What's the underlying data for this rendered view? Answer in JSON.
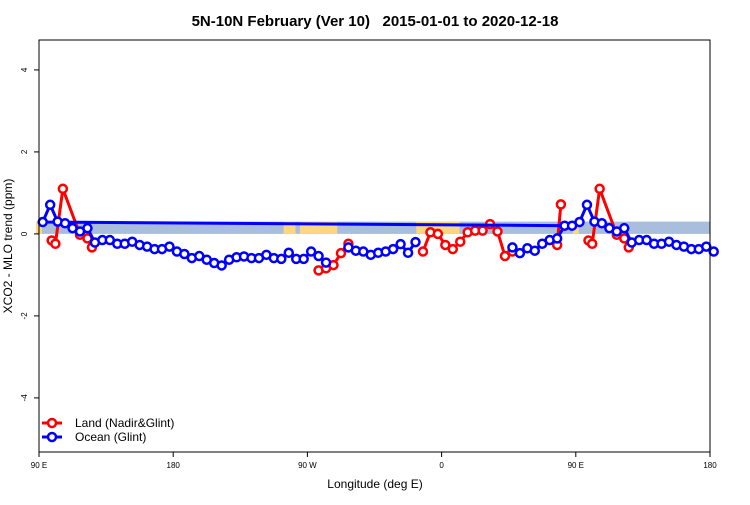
{
  "chart_data": {
    "type": "line",
    "title": "5N-10N February (Ver 10)   2015-01-01 to 2020-12-18",
    "xlabel": "Longitude (deg E)",
    "ylabel": "XCO2 - MLO trend (ppm)",
    "xlim_deg_east": [
      90,
      540
    ],
    "ylim": [
      -5.32,
      4.73
    ],
    "x_ticks": [
      {
        "lon": 90,
        "label": "90 E"
      },
      {
        "lon": 180,
        "label": "180"
      },
      {
        "lon": 270,
        "label": "90 W"
      },
      {
        "lon": 360,
        "label": "0"
      },
      {
        "lon": 450,
        "label": "90 E"
      },
      {
        "lon": 540,
        "label": "180"
      }
    ],
    "y_ticks": [
      4,
      2,
      0,
      -2,
      -4
    ],
    "grid": false,
    "legend_position": "bottom-left",
    "colors": {
      "land": "#ff0000",
      "ocean": "#0000ff",
      "ocean_band": "#a8bedc",
      "land_band": "#fcd77f"
    },
    "series": [
      {
        "name": "Land (Nadir&Glint)",
        "color": "#ff0000",
        "segments": [
          [
            [
              98.5,
              -0.16
            ],
            [
              101,
              -0.24
            ],
            [
              106,
              1.1
            ],
            [
              117.5,
              -0.02
            ],
            [
              122.5,
              -0.11
            ],
            [
              125.5,
              -0.33
            ]
          ],
          [
            [
              277.5,
              -0.89
            ],
            [
              282.5,
              -0.84
            ],
            [
              287.5,
              -0.76
            ],
            [
              292.5,
              -0.47
            ],
            [
              297.5,
              -0.24
            ]
          ],
          [
            [
              347.5,
              -0.43
            ],
            [
              352.5,
              0.04
            ],
            [
              357.5,
              0.0
            ],
            [
              2.5,
              -0.27
            ],
            [
              7.5,
              -0.37
            ],
            [
              12.5,
              -0.19
            ],
            [
              17.5,
              0.04
            ],
            [
              22.5,
              0.08
            ],
            [
              27.5,
              0.08
            ],
            [
              32.5,
              0.24
            ],
            [
              37.5,
              0.06
            ],
            [
              42.5,
              -0.54
            ],
            [
              47.5,
              -0.43
            ]
          ],
          [
            [
              77.5,
              -0.27
            ],
            [
              80,
              0.72
            ]
          ]
        ]
      },
      {
        "name": "Ocean (Glint)",
        "color": "#0000ff",
        "segments": [
          [
            [
              47.5,
              -0.33
            ],
            [
              52.5,
              -0.47
            ],
            [
              57.5,
              -0.35
            ],
            [
              62.5,
              -0.41
            ],
            [
              67.5,
              -0.24
            ],
            [
              72.5,
              -0.15
            ],
            [
              77.5,
              -0.11
            ],
            [
              82.5,
              0.2
            ],
            [
              87.5,
              0.2
            ],
            [
              92.5,
              0.29
            ],
            [
              97.5,
              0.71
            ],
            [
              102.5,
              0.3
            ],
            [
              107.5,
              0.26
            ],
            [
              112.5,
              0.14
            ],
            [
              117.5,
              0.06
            ],
            [
              122.5,
              0.14
            ],
            [
              127.5,
              -0.21
            ],
            [
              132.5,
              -0.15
            ],
            [
              137.5,
              -0.15
            ],
            [
              142.5,
              -0.24
            ],
            [
              147.5,
              -0.24
            ],
            [
              152.5,
              -0.19
            ],
            [
              157.5,
              -0.27
            ],
            [
              162.5,
              -0.31
            ],
            [
              167.5,
              -0.37
            ],
            [
              172.5,
              -0.37
            ],
            [
              177.5,
              -0.31
            ],
            [
              182.5,
              -0.43
            ],
            [
              187.5,
              -0.49
            ],
            [
              192.5,
              -0.59
            ],
            [
              197.5,
              -0.54
            ],
            [
              202.5,
              -0.63
            ],
            [
              207.5,
              -0.71
            ],
            [
              212.5,
              -0.77
            ],
            [
              217.5,
              -0.63
            ],
            [
              222.5,
              -0.57
            ],
            [
              227.5,
              -0.55
            ],
            [
              232.5,
              -0.59
            ],
            [
              237.5,
              -0.59
            ],
            [
              242.5,
              -0.51
            ],
            [
              247.5,
              -0.59
            ],
            [
              252.5,
              -0.61
            ],
            [
              257.5,
              -0.46
            ],
            [
              262.5,
              -0.61
            ],
            [
              267.5,
              -0.61
            ],
            [
              272.5,
              -0.43
            ],
            [
              277.5,
              -0.54
            ],
            [
              282.5,
              -0.7
            ]
          ],
          [
            [
              297.5,
              -0.33
            ],
            [
              302.5,
              -0.41
            ],
            [
              307.5,
              -0.43
            ],
            [
              312.5,
              -0.51
            ],
            [
              317.5,
              -0.46
            ],
            [
              322.5,
              -0.43
            ],
            [
              327.5,
              -0.37
            ],
            [
              332.5,
              -0.25
            ],
            [
              337.5,
              -0.46
            ],
            [
              342.5,
              -0.2
            ]
          ]
        ]
      }
    ]
  }
}
